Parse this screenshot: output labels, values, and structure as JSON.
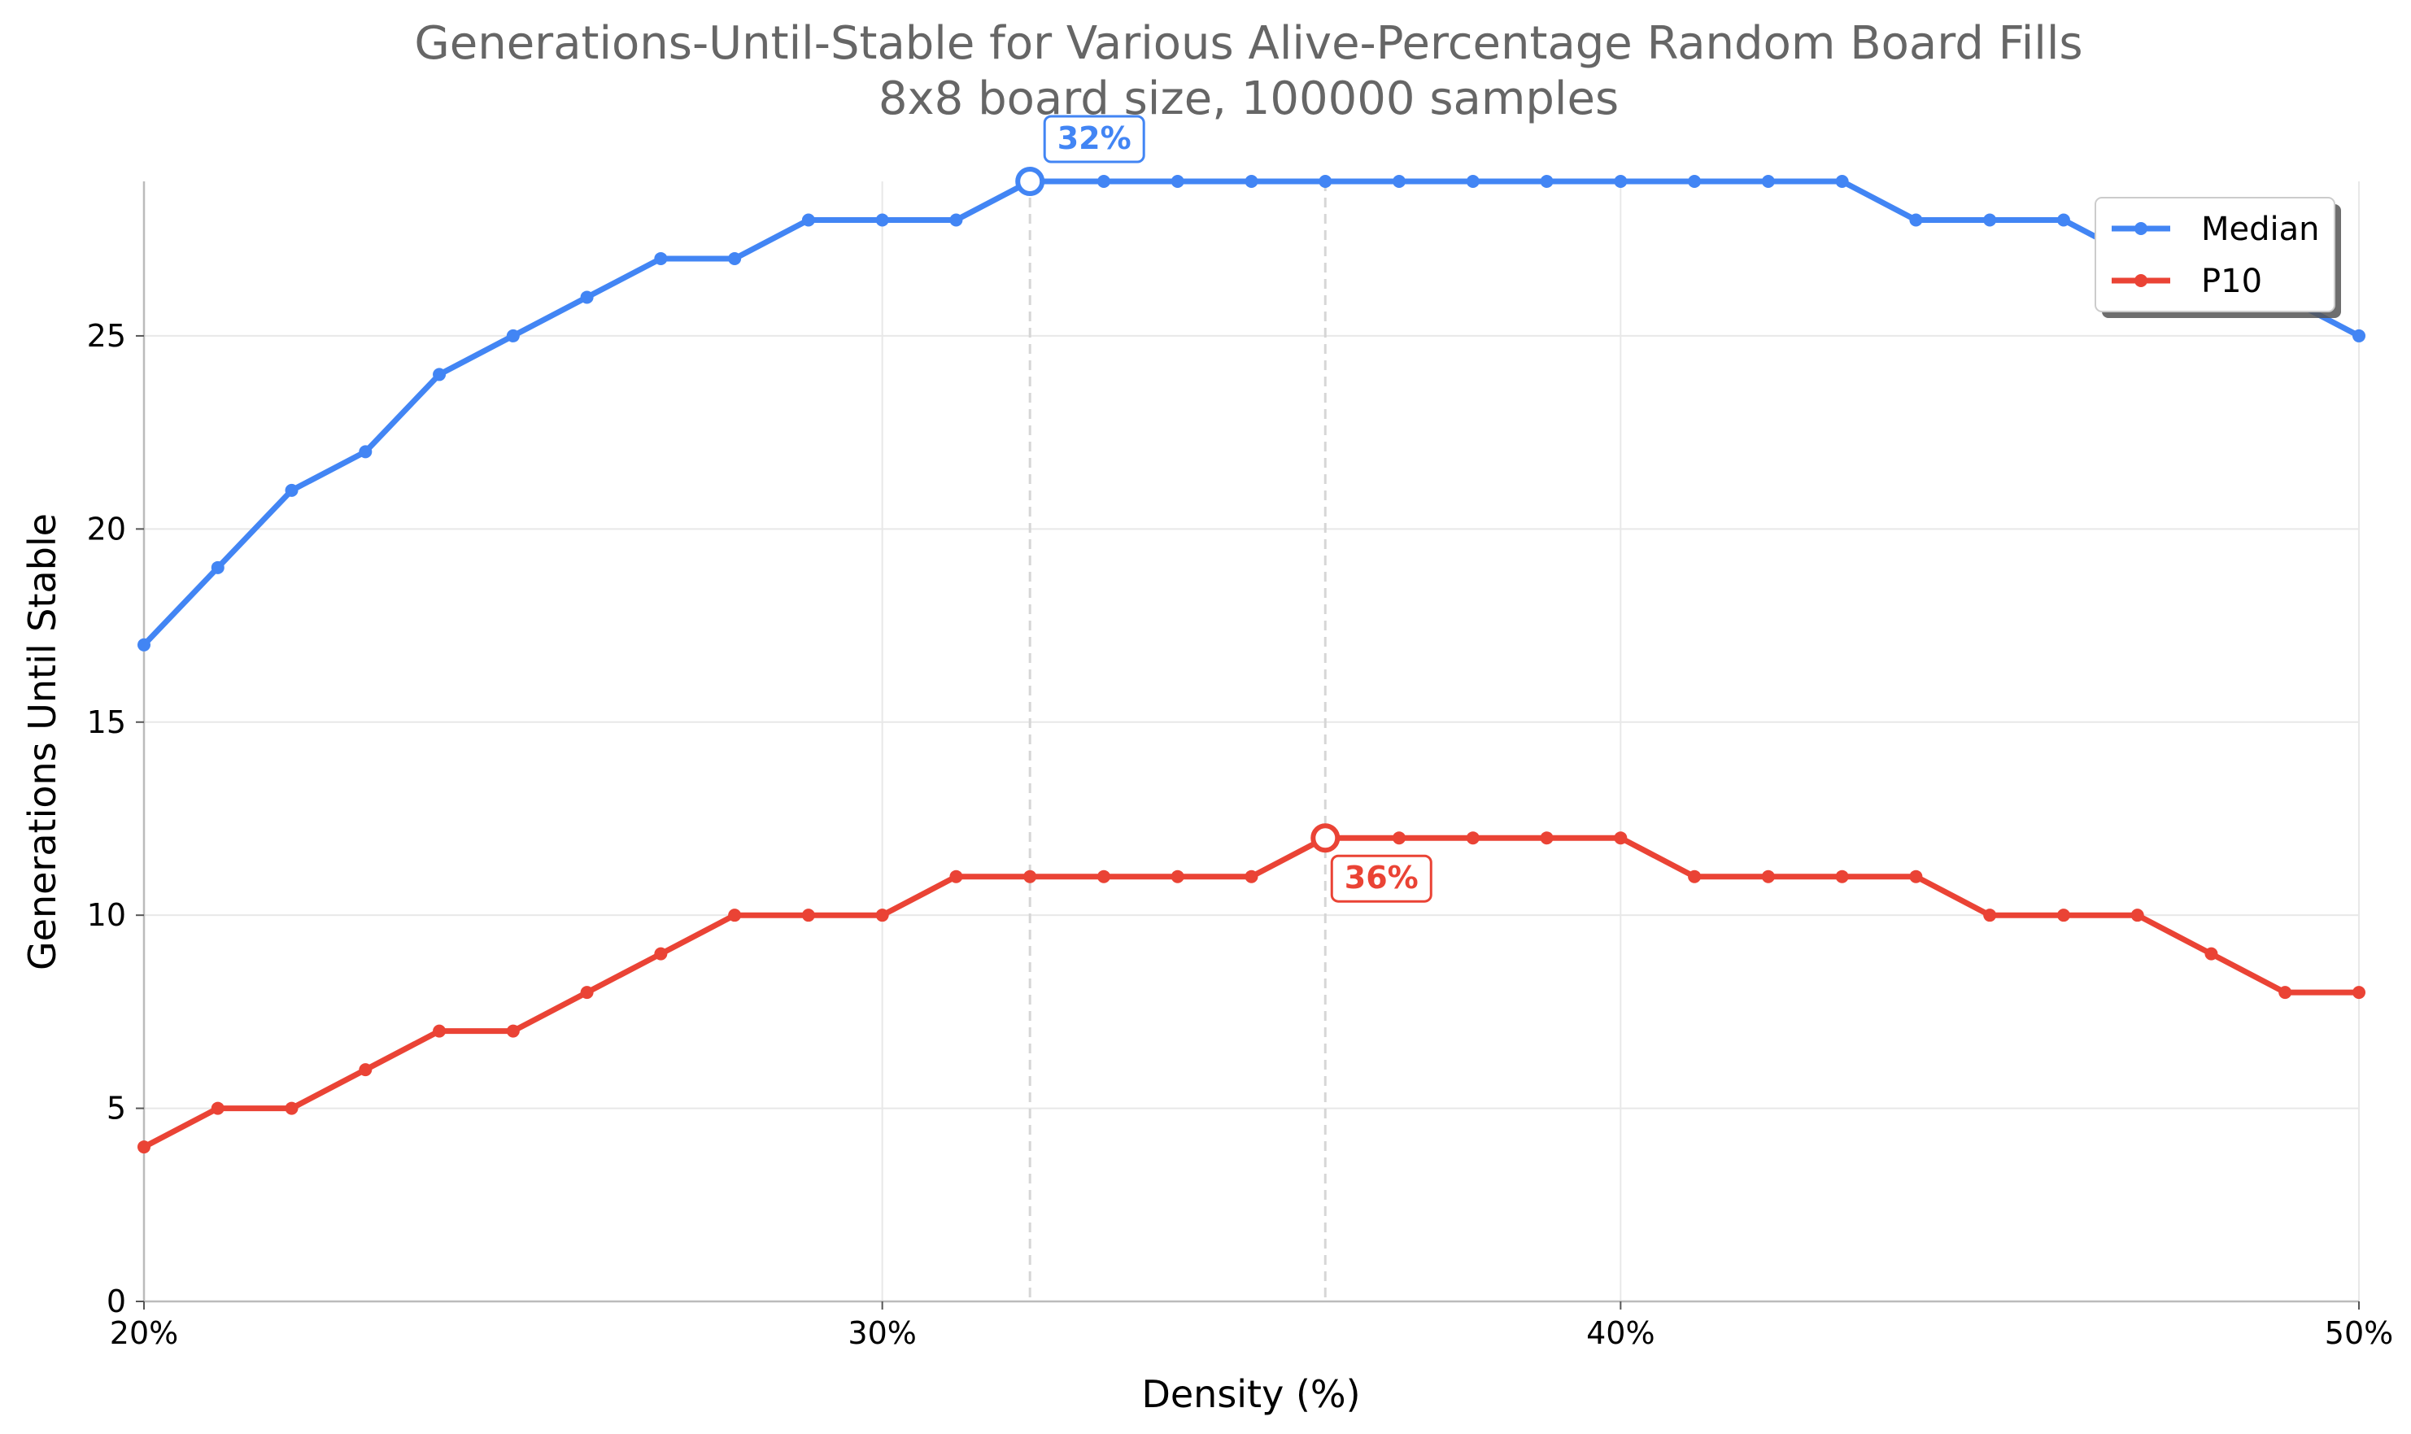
{
  "chart_data": {
    "type": "line",
    "title": "Generations-Until-Stable for Various Alive-Percentage Random Board Fills",
    "subtitle": "8x8 board size, 100000 samples",
    "xlabel": "Density (%)",
    "ylabel": "Generations Until Stable",
    "xlim": [
      20,
      50
    ],
    "ylim": [
      0,
      29
    ],
    "x_ticks": [
      20,
      30,
      40,
      50
    ],
    "x_tick_labels": [
      "20%",
      "30%",
      "40%",
      "50%"
    ],
    "y_ticks": [
      0,
      5,
      10,
      15,
      20,
      25
    ],
    "y_tick_labels": [
      "0",
      "5",
      "10",
      "15",
      "20",
      "25"
    ],
    "grid": true,
    "legend_position": "top-right",
    "x": [
      20,
      21,
      22,
      23,
      24,
      25,
      26,
      27,
      28,
      29,
      30,
      31,
      32,
      33,
      34,
      35,
      36,
      37,
      38,
      39,
      40,
      41,
      42,
      43,
      44,
      45,
      46,
      47,
      48,
      49,
      50
    ],
    "series": [
      {
        "name": "Median",
        "color": "#4285F4",
        "values": [
          17,
          19,
          21,
          22,
          24,
          25,
          26,
          27,
          27,
          28,
          28,
          28,
          29,
          29,
          29,
          29,
          29,
          29,
          29,
          29,
          29,
          29,
          29,
          29,
          28,
          28,
          28,
          27,
          27,
          26,
          25
        ]
      },
      {
        "name": "P10",
        "color": "#EA4335",
        "values": [
          4,
          5,
          5,
          6,
          7,
          7,
          8,
          9,
          10,
          10,
          10,
          11,
          11,
          11,
          11,
          11,
          12,
          12,
          12,
          12,
          12,
          11,
          11,
          11,
          11,
          10,
          10,
          10,
          9,
          8,
          8
        ]
      }
    ],
    "annotations": [
      {
        "series": "Median",
        "x": 32,
        "y": 29,
        "label": "32%",
        "color": "#4285F4",
        "placement": "above"
      },
      {
        "series": "P10",
        "x": 36,
        "y": 12,
        "label": "36%",
        "color": "#EA4335",
        "placement": "below-right"
      }
    ]
  }
}
